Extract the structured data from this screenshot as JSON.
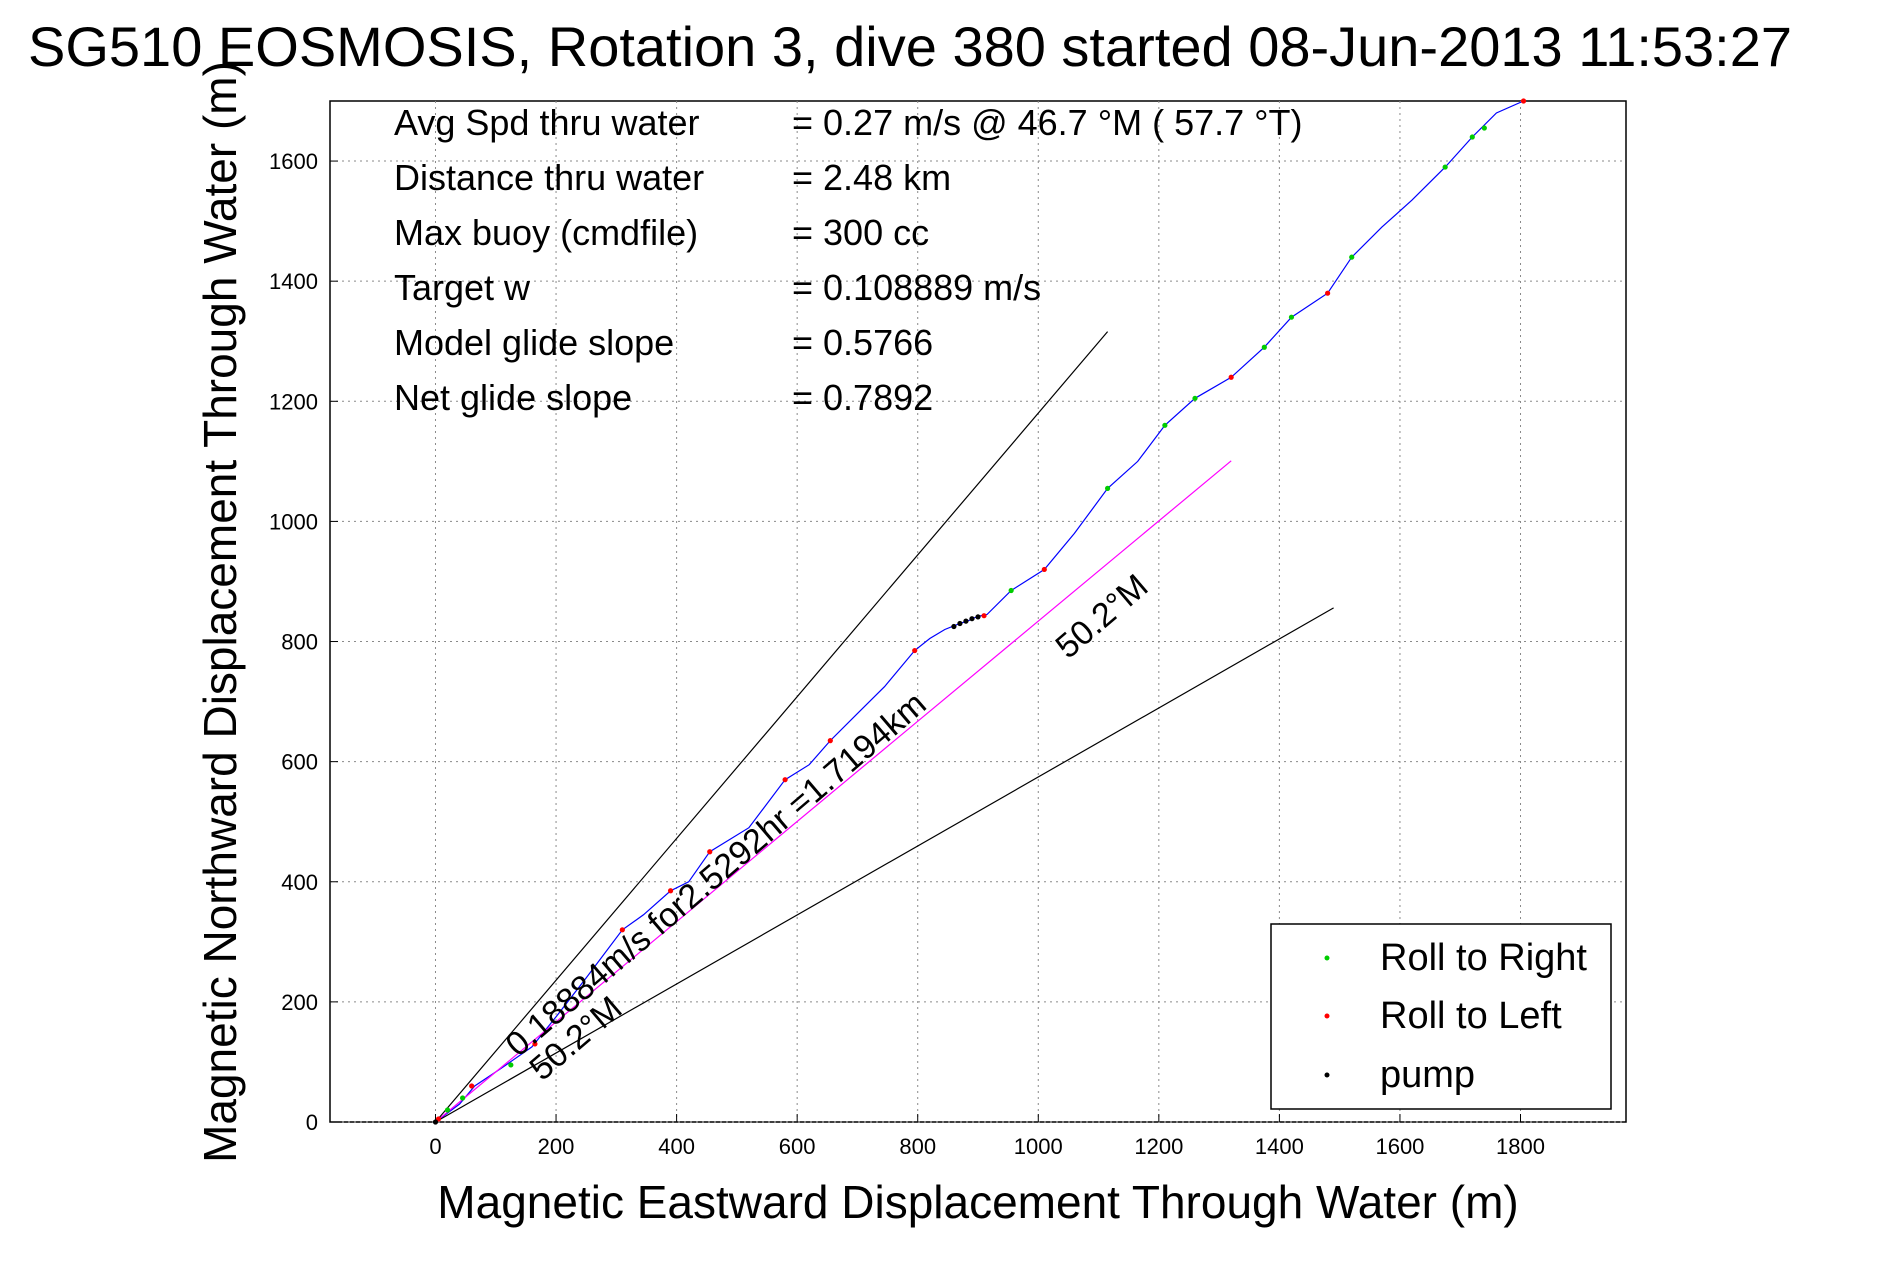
{
  "chart_data": {
    "type": "line",
    "title": "SG510 EOSMOSIS, Rotation 3, dive 380 started 08-Jun-2013 11:53:27",
    "xlabel": "Magnetic Eastward Displacement Through Water (m)",
    "ylabel": "Magnetic Northward Displacement Through Water (m)",
    "xlim": [
      -175,
      1975
    ],
    "ylim": [
      0,
      1700
    ],
    "xticks": [
      0,
      200,
      400,
      600,
      800,
      1000,
      1200,
      1400,
      1600,
      1800
    ],
    "yticks": [
      0,
      200,
      400,
      600,
      800,
      1000,
      1200,
      1400,
      1600
    ],
    "grid": true,
    "legend_position": "bottom-right",
    "info_lines": [
      {
        "label": "Avg Spd thru water",
        "value": "=  0.27 m/s @  46.7 °M ( 57.7 °T)"
      },
      {
        "label": "Distance thru water",
        "value": "=  2.48 km"
      },
      {
        "label": "Max buoy (cmdfile)",
        "value": "= 300 cc"
      },
      {
        "label": "Target w",
        "value": "= 0.108889 m/s"
      },
      {
        "label": "Model glide slope",
        "value": "= 0.5766"
      },
      {
        "label": "Net glide slope",
        "value": "= 0.7892"
      }
    ],
    "annotations": {
      "current_text": "0.18884m/s for2.5292hr =1.7194km",
      "heading_1": "50.2°M",
      "heading_2": "50.2°M"
    },
    "series": [
      {
        "name": "track",
        "color": "#0000ff",
        "x": [
          0,
          40,
          65,
          110,
          160,
          200,
          250,
          310,
          345,
          390,
          420,
          455,
          520,
          580,
          620,
          655,
          700,
          745,
          795,
          820,
          845,
          870,
          885,
          895,
          905,
          915,
          955,
          1010,
          1060,
          1115,
          1165,
          1210,
          1260,
          1320,
          1375,
          1420,
          1480,
          1520,
          1570,
          1620,
          1675,
          1720,
          1760,
          1805
        ],
        "y": [
          0,
          30,
          60,
          90,
          125,
          175,
          240,
          320,
          345,
          385,
          400,
          450,
          490,
          570,
          595,
          635,
          680,
          725,
          785,
          805,
          820,
          830,
          835,
          840,
          843,
          845,
          885,
          920,
          980,
          1055,
          1100,
          1160,
          1205,
          1240,
          1290,
          1340,
          1380,
          1440,
          1490,
          1535,
          1590,
          1640,
          1680,
          1700
        ]
      },
      {
        "name": "current",
        "color": "#ff00ff",
        "x": [
          0,
          1320
        ],
        "y": [
          0,
          1101
        ]
      },
      {
        "name": "glide-bound-1",
        "color": "#000000",
        "x": [
          0,
          1115
        ],
        "y": [
          0,
          1316
        ]
      },
      {
        "name": "glide-bound-2",
        "color": "#000000",
        "x": [
          0,
          1490
        ],
        "y": [
          0,
          856
        ]
      },
      {
        "name": "Roll to Right",
        "color": "#00cc00",
        "marker": true,
        "x": [
          20,
          45,
          125,
          955,
          1115,
          1210,
          1260,
          1375,
          1420,
          1520,
          1675,
          1720,
          1740
        ],
        "y": [
          20,
          40,
          95,
          885,
          1055,
          1160,
          1205,
          1290,
          1340,
          1440,
          1590,
          1640,
          1655
        ]
      },
      {
        "name": "Roll to Left",
        "color": "#ff0000",
        "marker": true,
        "x": [
          5,
          60,
          165,
          310,
          390,
          455,
          580,
          655,
          795,
          910,
          1010,
          1320,
          1480,
          1805
        ],
        "y": [
          5,
          60,
          130,
          320,
          385,
          450,
          570,
          635,
          785,
          843,
          920,
          1240,
          1380,
          1700
        ]
      },
      {
        "name": "pump",
        "color": "#000000",
        "marker": true,
        "x": [
          0,
          860,
          870,
          880,
          890,
          900
        ],
        "y": [
          0,
          825,
          830,
          834,
          838,
          841
        ]
      }
    ]
  }
}
